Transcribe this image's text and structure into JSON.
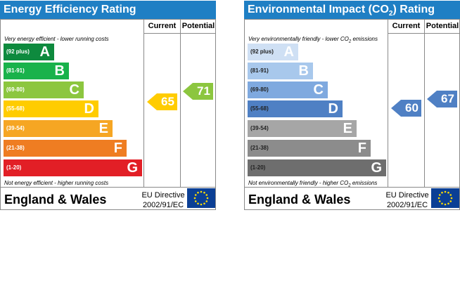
{
  "colors": {
    "header": "#1f7fc4",
    "energy_bands": [
      "#0e8a3e",
      "#19b24b",
      "#8cc63f",
      "#ffcc00",
      "#f6a623",
      "#ef7d22",
      "#e21f26"
    ],
    "env_bands": [
      "#cfe0f4",
      "#a8c8ec",
      "#7fa9df",
      "#4f80c4",
      "#a6a6a6",
      "#8c8c8c",
      "#6e6e6e"
    ],
    "energy_current": "#ffcc00",
    "energy_potential": "#8cc63f",
    "env_indicator": "#4f80c4",
    "eu_flag": "#0b3f95"
  },
  "energy": {
    "title": "Energy Efficiency Rating",
    "col_current": "Current",
    "col_potential": "Potential",
    "top_note": "Very energy efficient - lower running costs",
    "bottom_note": "Not energy efficient - higher running costs",
    "bands": [
      {
        "range": "(92 plus)",
        "letter": "A"
      },
      {
        "range": "(81-91)",
        "letter": "B"
      },
      {
        "range": "(69-80)",
        "letter": "C"
      },
      {
        "range": "(55-68)",
        "letter": "D"
      },
      {
        "range": "(39-54)",
        "letter": "E"
      },
      {
        "range": "(21-38)",
        "letter": "F"
      },
      {
        "range": "(1-20)",
        "letter": "G"
      }
    ],
    "current": "65",
    "potential": "71",
    "country": "England & Wales",
    "directive_line1": "EU Directive",
    "directive_line2": "2002/91/EC"
  },
  "environmental": {
    "title_prefix": "Environmental Impact (CO",
    "title_sub": "2",
    "title_suffix": ") Rating",
    "col_current": "Current",
    "col_potential": "Potential",
    "top_note_prefix": "Very environmentally friendly - lower CO",
    "top_note_sub": "2",
    "top_note_suffix": " emissions",
    "bottom_note_prefix": "Not environmentally friendly - higher CO",
    "bottom_note_sub": "2",
    "bottom_note_suffix": " emissions",
    "bands": [
      {
        "range": "(92 plus)",
        "letter": "A"
      },
      {
        "range": "(81-91)",
        "letter": "B"
      },
      {
        "range": "(69-80)",
        "letter": "C"
      },
      {
        "range": "(55-68)",
        "letter": "D"
      },
      {
        "range": "(39-54)",
        "letter": "E"
      },
      {
        "range": "(21-38)",
        "letter": "F"
      },
      {
        "range": "(1-20)",
        "letter": "G"
      }
    ],
    "current": "60",
    "potential": "67",
    "country": "England & Wales",
    "directive_line1": "EU Directive",
    "directive_line2": "2002/91/EC"
  }
}
